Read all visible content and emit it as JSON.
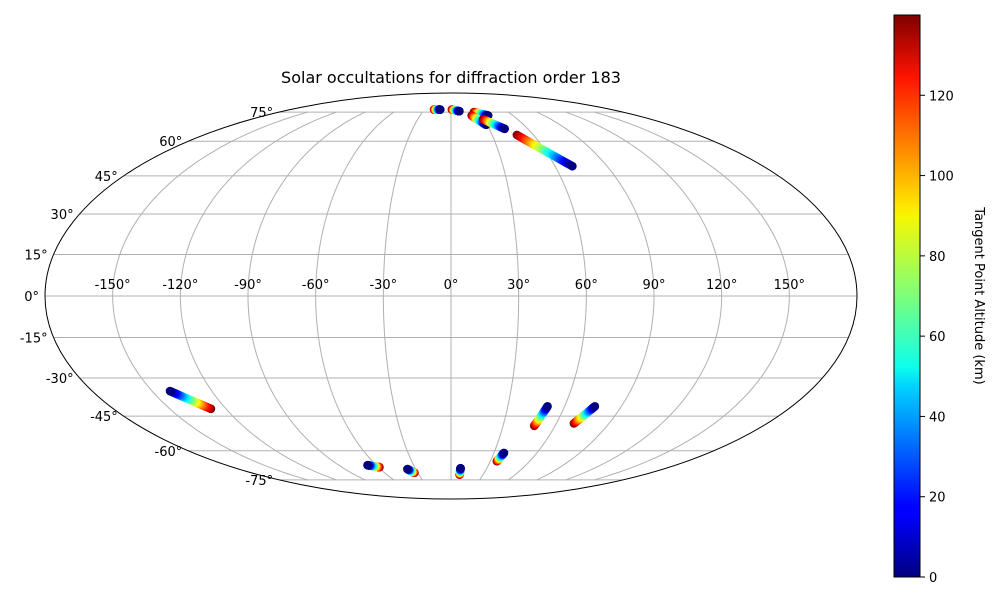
{
  "chart_data": {
    "type": "scatter",
    "projection": "mollweide",
    "title": "Solar occultations for diffraction order 183",
    "longitude_ticks": [
      -150,
      -120,
      -90,
      -60,
      -30,
      0,
      30,
      60,
      90,
      120,
      150
    ],
    "longitude_tick_labels": [
      "-150°",
      "-120°",
      "-90°",
      "-60°",
      "-30°",
      "0°",
      "30°",
      "60°",
      "90°",
      "120°",
      "150°"
    ],
    "latitude_ticks": [
      -75,
      -60,
      -45,
      -30,
      -15,
      0,
      15,
      30,
      45,
      60,
      75
    ],
    "latitude_tick_labels": [
      "-75°",
      "-60°",
      "-45°",
      "-30°",
      "-15°",
      "0°",
      "15°",
      "30°",
      "45°",
      "60°",
      "75°"
    ],
    "grid": true,
    "colorbar": {
      "label": "Tangent Point Altitude (km)",
      "range": [
        0,
        140
      ],
      "ticks": [
        0,
        20,
        40,
        60,
        80,
        100,
        120
      ],
      "tick_labels": [
        "0",
        "20",
        "40",
        "60",
        "80",
        "100",
        "120"
      ],
      "colormap": "jet"
    },
    "tracks": [
      {
        "start": {
          "lon": -19,
          "lat": 76.5,
          "alt": 140
        },
        "end": {
          "lon": -12,
          "lat": 76.5,
          "alt": 0
        }
      },
      {
        "start": {
          "lon": 1,
          "lat": 76.5,
          "alt": 140
        },
        "end": {
          "lon": 9,
          "lat": 75.5,
          "alt": 0
        }
      },
      {
        "start": {
          "lon": 24,
          "lat": 75,
          "alt": 140
        },
        "end": {
          "lon": 36,
          "lat": 73,
          "alt": 0
        }
      },
      {
        "start": {
          "lon": 20,
          "lat": 73,
          "alt": 140
        },
        "end": {
          "lon": 29,
          "lat": 68,
          "alt": 0
        }
      },
      {
        "start": {
          "lon": 29,
          "lat": 71,
          "alt": 140
        },
        "end": {
          "lon": 42,
          "lat": 66,
          "alt": 0
        }
      },
      {
        "start": {
          "lon": 48,
          "lat": 63,
          "alt": 140
        },
        "end": {
          "lon": 70,
          "lat": 49,
          "alt": 0
        }
      },
      {
        "start": {
          "lon": -128,
          "lat": -42,
          "alt": 140
        },
        "end": {
          "lon": -141,
          "lat": -35,
          "alt": 0
        }
      },
      {
        "start": {
          "lon": -59,
          "lat": -68,
          "alt": 140
        },
        "end": {
          "lon": -67,
          "lat": -67,
          "alt": 0
        }
      },
      {
        "start": {
          "lon": -33,
          "lat": -71,
          "alt": 140
        },
        "end": {
          "lon": -37,
          "lat": -69,
          "alt": 0
        }
      },
      {
        "start": {
          "lon": 8,
          "lat": -72,
          "alt": 140
        },
        "end": {
          "lon": 8,
          "lat": -68.5,
          "alt": 0
        }
      },
      {
        "start": {
          "lon": 35,
          "lat": -65,
          "alt": 140
        },
        "end": {
          "lon": 37,
          "lat": -61,
          "alt": 0
        }
      },
      {
        "start": {
          "lon": 48,
          "lat": -49,
          "alt": 140
        },
        "end": {
          "lon": 51,
          "lat": -41,
          "alt": 0
        }
      },
      {
        "start": {
          "lon": 70,
          "lat": -48,
          "alt": 140
        },
        "end": {
          "lon": 76,
          "lat": -41,
          "alt": 0
        }
      }
    ]
  }
}
